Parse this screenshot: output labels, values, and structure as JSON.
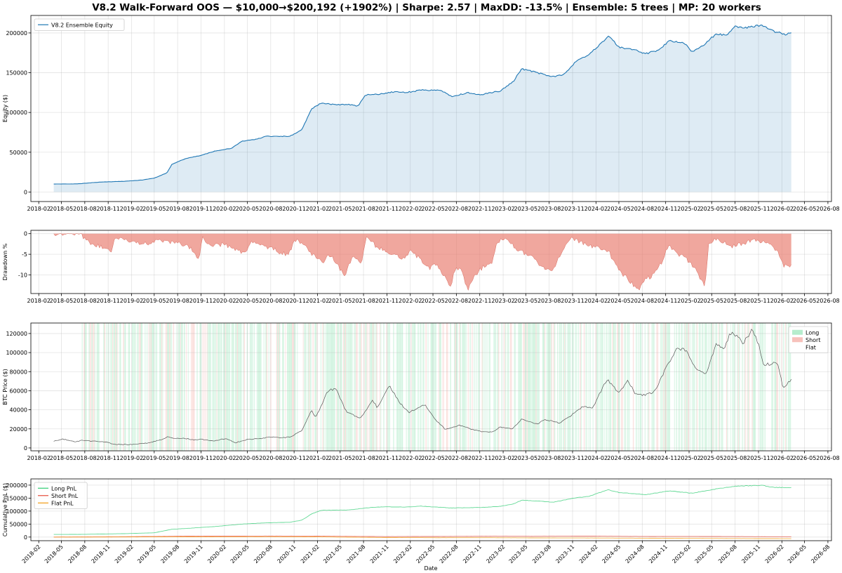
{
  "chart_data": {
    "title": "V8.2 Walk-Forward OOS — $10,000→$200,192 (+1902%) | Sharpe: 2.57 | MaxDD: -13.5% | Ensemble: 5 trees | MP: 20 workers",
    "x_tick_labels": [
      "2018-02",
      "2018-05",
      "2018-08",
      "2018-11",
      "2019-02",
      "2019-05",
      "2019-08",
      "2019-11",
      "2020-02",
      "2020-05",
      "2020-08",
      "2020-11",
      "2021-02",
      "2021-05",
      "2021-08",
      "2021-11",
      "2022-02",
      "2022-05",
      "2022-08",
      "2022-11",
      "2023-02",
      "2023-05",
      "2023-08",
      "2023-11",
      "2024-02",
      "2024-05",
      "2024-08",
      "2024-11",
      "2025-02",
      "2025-05",
      "2025-08",
      "2025-11",
      "2026-02",
      "2026-05",
      "2026-08"
    ],
    "x_range": [
      "2018-01-01",
      "2026-08-15"
    ],
    "xlabel": "Date",
    "grid": true,
    "panels": [
      {
        "id": "equity",
        "type": "area",
        "ylabel": "Equity ($)",
        "ylim": [
          -12000,
          222000
        ],
        "y_ticks": [
          0,
          50000,
          100000,
          150000,
          200000
        ],
        "legend": "top-left",
        "series": [
          {
            "name": "V8.2 Ensemble Equity",
            "color": "#1f77b4",
            "x": [
              "2018-04-01",
              "2018-07-01",
              "2018-10-01",
              "2019-01-01",
              "2019-03-15",
              "2019-05-01",
              "2019-06-20",
              "2019-07-10",
              "2019-09-01",
              "2019-11-01",
              "2020-01-01",
              "2020-03-01",
              "2020-04-10",
              "2020-06-01",
              "2020-07-15",
              "2020-10-15",
              "2020-12-01",
              "2021-01-10",
              "2021-02-15",
              "2021-04-01",
              "2021-06-01",
              "2021-07-10",
              "2021-08-10",
              "2021-10-01",
              "2021-12-01",
              "2022-01-15",
              "2022-03-15",
              "2022-06-01",
              "2022-07-15",
              "2022-09-15",
              "2022-11-01",
              "2022-12-15",
              "2023-01-20",
              "2023-03-15",
              "2023-04-15",
              "2023-06-15",
              "2023-08-15",
              "2023-10-01",
              "2023-11-10",
              "2024-01-01",
              "2024-03-01",
              "2024-03-20",
              "2024-05-01",
              "2024-06-15",
              "2024-08-15",
              "2024-10-01",
              "2024-11-15",
              "2025-01-10",
              "2025-02-15",
              "2025-04-01",
              "2025-05-15",
              "2025-07-01",
              "2025-08-01",
              "2025-09-01",
              "2025-10-01",
              "2025-11-15",
              "2026-01-01",
              "2026-02-15",
              "2026-03-10"
            ],
            "values": [
              10000,
              10200,
              12500,
              13500,
              15000,
              17500,
              24000,
              35000,
              42000,
              46000,
              52000,
              55000,
              64000,
              66000,
              70000,
              70000,
              78000,
              105000,
              112000,
              110000,
              110000,
              108000,
              122000,
              123000,
              126000,
              125000,
              128000,
              128000,
              120000,
              125000,
              122000,
              125000,
              127000,
              140000,
              155000,
              150000,
              145000,
              148000,
              163000,
              172000,
              190000,
              197000,
              182000,
              180000,
              174000,
              178000,
              190000,
              188000,
              176000,
              185000,
              198000,
              198000,
              208000,
              206000,
              208000,
              210000,
              202000,
              198000,
              200192
            ]
          }
        ]
      },
      {
        "id": "drawdown",
        "type": "area",
        "ylabel": "Drawdown %",
        "ylim": [
          -14.5,
          0.8
        ],
        "y_ticks": [
          -10,
          -5,
          0
        ],
        "series": [
          {
            "name": "",
            "color": "#e8786a",
            "x": [
              "2018-04-01",
              "2018-07-20",
              "2018-08-01",
              "2018-09-01",
              "2018-10-15",
              "2018-11-10",
              "2018-12-01",
              "2019-01-15",
              "2019-02-15",
              "2019-04-01",
              "2019-05-15",
              "2019-07-01",
              "2019-08-15",
              "2019-10-01",
              "2019-10-25",
              "2019-11-05",
              "2019-12-20",
              "2020-02-01",
              "2020-03-15",
              "2020-04-20",
              "2020-05-20",
              "2020-07-01",
              "2020-08-10",
              "2020-09-01",
              "2020-10-10",
              "2020-11-05",
              "2020-12-15",
              "2021-01-10",
              "2021-02-20",
              "2021-03-25",
              "2021-05-01",
              "2021-05-20",
              "2021-06-20",
              "2021-07-25",
              "2021-08-10",
              "2021-09-20",
              "2021-10-20",
              "2021-11-25",
              "2022-01-10",
              "2022-02-01",
              "2022-03-10",
              "2022-04-15",
              "2022-05-10",
              "2022-06-20",
              "2022-07-10",
              "2022-07-25",
              "2022-08-15",
              "2022-09-15",
              "2022-10-15",
              "2022-11-15",
              "2022-12-20",
              "2023-01-10",
              "2023-02-01",
              "2023-03-10",
              "2023-03-25",
              "2023-05-10",
              "2023-06-10",
              "2023-07-01",
              "2023-08-15",
              "2023-09-20",
              "2023-10-20",
              "2023-11-10",
              "2023-12-20",
              "2024-01-15",
              "2024-03-20",
              "2024-04-20",
              "2024-05-20",
              "2024-06-20",
              "2024-07-20",
              "2024-08-15",
              "2024-09-15",
              "2024-10-15",
              "2024-11-10",
              "2024-12-20",
              "2025-01-20",
              "2025-02-20",
              "2025-03-15",
              "2025-04-05",
              "2025-04-20",
              "2025-05-15",
              "2025-06-20",
              "2025-07-20",
              "2025-08-20",
              "2025-09-20",
              "2025-10-20",
              "2025-11-20",
              "2025-12-20",
              "2026-01-20",
              "2026-02-10",
              "2026-03-10"
            ],
            "values": [
              0,
              0,
              -1.5,
              -2.5,
              -3.5,
              -4.5,
              -1,
              -1.5,
              -2,
              -2.5,
              -1.5,
              -2,
              -2.5,
              -4,
              -6.5,
              -1,
              -3,
              -2.5,
              -4,
              -4.5,
              -2,
              -3,
              -3.5,
              -4.5,
              -5,
              -1.5,
              -3,
              -5,
              -7,
              -5,
              -8.5,
              -10,
              -5,
              -7,
              -1,
              -3,
              -4,
              -5,
              -6,
              -4,
              -6,
              -8.5,
              -7,
              -11,
              -13,
              -9,
              -8,
              -13.5,
              -10,
              -8,
              -7,
              -2,
              -1,
              -2.5,
              -4,
              -5,
              -6.5,
              -8,
              -9,
              -4,
              -1,
              -1.5,
              -2.5,
              -3,
              -4,
              -8,
              -10,
              -12,
              -13.5,
              -11,
              -10,
              -7,
              -3,
              -5,
              -6,
              -8,
              -10.5,
              -13,
              -2,
              -1.5,
              -2,
              -3,
              -2.5,
              -2,
              -1.5,
              -2,
              -3,
              -5,
              -8,
              -7.5
            ]
          }
        ]
      },
      {
        "id": "btc",
        "type": "line",
        "ylabel": "BTC Price ($)",
        "ylim": [
          -3000,
          131000
        ],
        "y_ticks": [
          0,
          20000,
          40000,
          60000,
          80000,
          100000,
          120000
        ],
        "legend": "top-right",
        "legend_entries": [
          {
            "name": "Long",
            "color": "#2ecc71"
          },
          {
            "name": "Short",
            "color": "#e74c3c"
          },
          {
            "name": "Flat",
            "color": "#bbbbbb"
          }
        ],
        "regime_band_x": [
          "2018-07-20",
          "2026-03-10"
        ],
        "regime_colors": {
          "long": "#2ecc71",
          "short": "#e74c3c"
        },
        "series": [
          {
            "name": "",
            "color": "#555555",
            "x": [
              "2018-04-01",
              "2018-05-05",
              "2018-06-20",
              "2018-07-25",
              "2018-09-01",
              "2018-10-15",
              "2018-11-25",
              "2018-12-15",
              "2019-02-01",
              "2019-04-01",
              "2019-05-20",
              "2019-06-26",
              "2019-07-20",
              "2019-09-01",
              "2019-10-01",
              "2019-11-01",
              "2019-12-15",
              "2020-02-10",
              "2020-03-15",
              "2020-05-01",
              "2020-06-15",
              "2020-08-01",
              "2020-09-15",
              "2020-10-20",
              "2020-12-01",
              "2021-01-08",
              "2021-01-25",
              "2021-03-14",
              "2021-04-14",
              "2021-05-25",
              "2021-07-20",
              "2021-09-05",
              "2021-09-25",
              "2021-11-10",
              "2021-12-20",
              "2022-01-25",
              "2022-03-30",
              "2022-05-10",
              "2022-06-18",
              "2022-08-15",
              "2022-10-01",
              "2022-11-10",
              "2022-12-20",
              "2023-01-20",
              "2023-03-10",
              "2023-04-14",
              "2023-06-15",
              "2023-07-15",
              "2023-09-10",
              "2023-10-25",
              "2023-12-10",
              "2024-01-20",
              "2024-03-14",
              "2024-05-01",
              "2024-06-05",
              "2024-07-05",
              "2024-08-05",
              "2024-09-10",
              "2024-10-01",
              "2024-11-10",
              "2024-12-17",
              "2025-01-20",
              "2025-02-28",
              "2025-04-08",
              "2025-05-22",
              "2025-06-20",
              "2025-07-14",
              "2025-08-15",
              "2025-09-01",
              "2025-10-06",
              "2025-11-01",
              "2025-11-21",
              "2025-12-20",
              "2026-01-15",
              "2026-02-05",
              "2026-02-25",
              "2026-03-10"
            ],
            "values": [
              7000,
              9500,
              6500,
              8000,
              7000,
              6500,
              4000,
              3500,
              3600,
              5000,
              8000,
              12000,
              10000,
              10000,
              8500,
              9200,
              7200,
              10000,
              5500,
              9000,
              9500,
              11500,
              10500,
              12000,
              18000,
              40000,
              32000,
              60000,
              62000,
              38000,
              31000,
              50000,
              42000,
              66000,
              48000,
              37000,
              46000,
              30000,
              19500,
              24000,
              19500,
              17000,
              16500,
              22000,
              20000,
              30000,
              25000,
              30000,
              26000,
              34000,
              43000,
              42000,
              72000,
              58000,
              70000,
              57000,
              55000,
              58000,
              65000,
              88000,
              105000,
              102000,
              84000,
              77000,
              110000,
              105000,
              120000,
              118000,
              108000,
              125000,
              110000,
              87000,
              88000,
              91000,
              64000,
              68000,
              72000
            ]
          }
        ]
      },
      {
        "id": "pnl",
        "type": "line",
        "ylabel": "Cumulative PnL ($)",
        "ylim": [
          -14000,
          224000
        ],
        "y_ticks": [
          0,
          50000,
          100000,
          150000,
          200000
        ],
        "legend": "top-left",
        "series": [
          {
            "name": "Long PnL",
            "color": "#2ecc71",
            "x": [
              "2018-04-01",
              "2018-07-01",
              "2019-01-01",
              "2019-05-01",
              "2019-07-10",
              "2019-09-01",
              "2019-11-01",
              "2020-01-01",
              "2020-04-10",
              "2020-07-15",
              "2020-10-15",
              "2020-12-01",
              "2021-01-10",
              "2021-02-15",
              "2021-06-01",
              "2021-08-10",
              "2021-10-01",
              "2022-01-15",
              "2022-03-15",
              "2022-07-15",
              "2022-11-01",
              "2023-01-20",
              "2023-03-15",
              "2023-04-15",
              "2023-06-15",
              "2023-08-15",
              "2023-11-10",
              "2024-01-01",
              "2024-03-20",
              "2024-05-01",
              "2024-08-15",
              "2024-11-15",
              "2025-02-15",
              "2025-05-15",
              "2025-08-01",
              "2025-11-15",
              "2026-01-01",
              "2026-03-10"
            ],
            "values": [
              10000,
              10200,
              13000,
              16500,
              30000,
              33000,
              37000,
              41000,
              50000,
              55000,
              57000,
              65000,
              90000,
              103000,
              104000,
              112000,
              116000,
              116000,
              119000,
              112000,
              114000,
              118000,
              128000,
              142000,
              139000,
              134000,
              151000,
              156000,
              182000,
              172000,
              163000,
              178000,
              169000,
              185000,
              196000,
              199000,
              191000,
              191000
            ]
          },
          {
            "name": "Short PnL",
            "color": "#e74c3c",
            "x": [
              "2018-04-01",
              "2018-10-01",
              "2019-05-01",
              "2019-10-01",
              "2020-03-01",
              "2020-08-01",
              "2021-01-01",
              "2021-06-01",
              "2021-11-01",
              "2022-06-01",
              "2022-12-01",
              "2023-06-01",
              "2024-01-01",
              "2024-08-01",
              "2025-02-01",
              "2025-09-01",
              "2026-03-10"
            ],
            "values": [
              0,
              600,
              2500,
              3800,
              3500,
              4000,
              3800,
              2800,
              1800,
              2400,
              3200,
              3000,
              3600,
              2400,
              2500,
              1800,
              1200
            ]
          },
          {
            "name": "Flat PnL",
            "color": "#f39c12",
            "x": [
              "2018-04-01",
              "2018-10-01",
              "2019-05-01",
              "2019-10-01",
              "2020-03-01",
              "2020-08-01",
              "2021-01-01",
              "2021-06-01",
              "2021-11-01",
              "2022-06-01",
              "2022-12-01",
              "2023-06-01",
              "2024-01-01",
              "2024-08-01",
              "2025-02-01",
              "2025-09-01",
              "2026-03-10"
            ],
            "values": [
              0,
              200,
              600,
              900,
              1200,
              1400,
              1000,
              -400,
              -1800,
              -2500,
              -2300,
              -3200,
              -3500,
              -4200,
              -4800,
              -5500,
              -6200
            ]
          }
        ]
      }
    ]
  }
}
